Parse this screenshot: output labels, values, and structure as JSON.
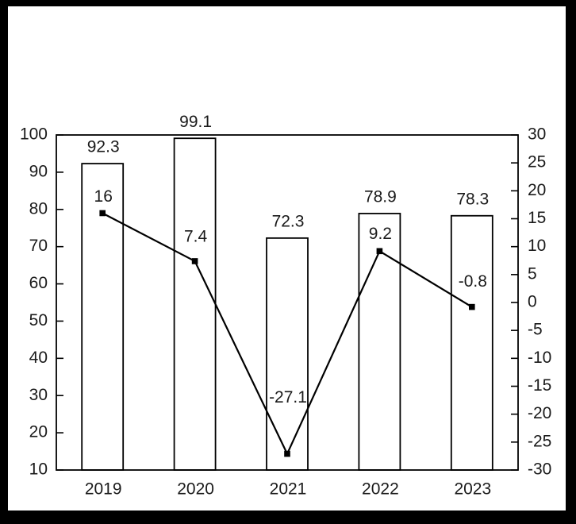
{
  "window": {
    "frame_color": "#000000",
    "canvas_color": "#ffffff"
  },
  "colors": {
    "text": "#1a1a1a",
    "axis_line": "#000000",
    "bar_fill": "#ffffff",
    "bar_stroke": "#000000",
    "line_stroke": "#000000",
    "marker_fill": "#000000"
  },
  "chart_data": {
    "type": "combo_bar_line",
    "title": "",
    "categories": [
      "2019",
      "2020",
      "2021",
      "2022",
      "2023"
    ],
    "series": [
      {
        "name": "bar-series",
        "type": "bar",
        "axis": "left",
        "values": [
          92.3,
          99.1,
          72.3,
          78.9,
          78.3
        ],
        "data_labels": [
          "92.3",
          "99.1",
          "72.3",
          "78.9",
          "78.3"
        ]
      },
      {
        "name": "line-series",
        "type": "line",
        "axis": "right",
        "marker": "square",
        "values": [
          16,
          7.4,
          -27.1,
          9.2,
          -0.8
        ],
        "data_labels": [
          "16",
          "7.4",
          "-27.1",
          "9.2",
          "-0.8"
        ]
      }
    ],
    "axes": {
      "left": {
        "min": 10,
        "max": 100,
        "step": 10,
        "tick_labels": [
          "100",
          "90",
          "80",
          "70",
          "60",
          "50",
          "40",
          "30",
          "20",
          "10"
        ]
      },
      "right": {
        "min": -30,
        "max": 30,
        "step": 5,
        "tick_labels": [
          "30",
          "25",
          "20",
          "15",
          "10",
          "5",
          "0",
          "-5",
          "-10",
          "-15",
          "-20",
          "-25",
          "-30"
        ]
      }
    },
    "grid": false,
    "legend_visible": false,
    "layout_hints": {
      "plot_border": true,
      "tick_style": "inside",
      "bar_label_dy": -20,
      "line_label_dy": [
        -20,
        -30,
        -70,
        -21,
        -31
      ]
    }
  }
}
